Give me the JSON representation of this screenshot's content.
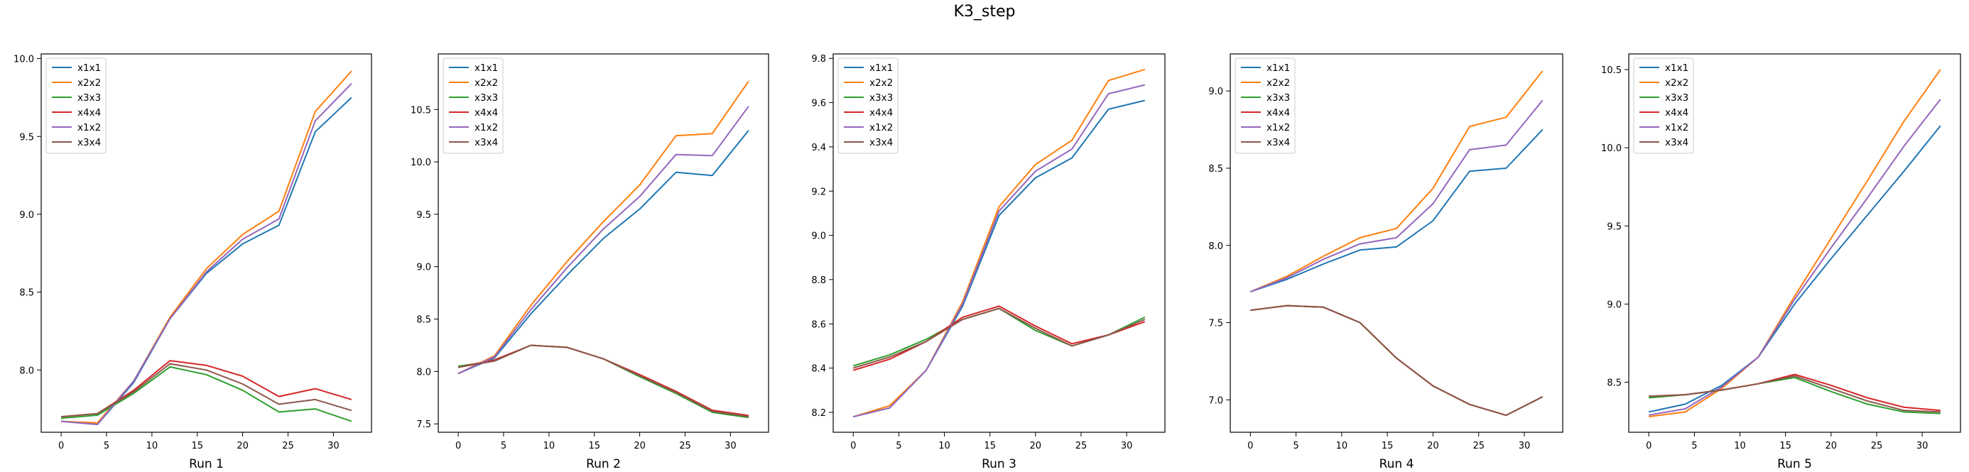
{
  "title": "K3_step",
  "colors": {
    "x1x1": "#1f77b4",
    "x2x2": "#ff7f0e",
    "x3x3": "#2ca02c",
    "x4x4": "#d62728",
    "x1x2": "#9467bd",
    "x3x4": "#8c564b"
  },
  "chart_data": [
    {
      "type": "line",
      "xlabel": "Run 1",
      "ylabel": "",
      "legend": "top-left",
      "grid": false,
      "x": [
        0,
        4,
        8,
        12,
        16,
        20,
        24,
        28,
        32
      ],
      "xticks": [
        0,
        5,
        10,
        15,
        20,
        25,
        30
      ],
      "yticks": [
        8.0,
        8.5,
        9.0,
        9.5,
        10.0
      ],
      "ytick_labels": [
        "8.0",
        "8.5",
        "9.0",
        "9.5",
        "10.0"
      ],
      "xlim": [
        -2.2,
        34.2
      ],
      "ylim": [
        7.6,
        10.03
      ],
      "series": [
        {
          "name": "x1x1",
          "values": [
            7.67,
            7.65,
            7.92,
            8.33,
            8.62,
            8.81,
            8.93,
            9.53,
            9.75
          ]
        },
        {
          "name": "x2x2",
          "values": [
            7.67,
            7.66,
            7.93,
            8.34,
            8.65,
            8.87,
            9.02,
            9.66,
            9.92
          ]
        },
        {
          "name": "x3x3",
          "values": [
            7.69,
            7.71,
            7.85,
            8.02,
            7.97,
            7.87,
            7.73,
            7.75,
            7.67
          ]
        },
        {
          "name": "x4x4",
          "values": [
            7.7,
            7.72,
            7.87,
            8.06,
            8.03,
            7.96,
            7.83,
            7.88,
            7.81
          ]
        },
        {
          "name": "x1x2",
          "values": [
            7.67,
            7.65,
            7.93,
            8.33,
            8.63,
            8.84,
            8.97,
            9.6,
            9.84
          ]
        },
        {
          "name": "x3x4",
          "values": [
            7.7,
            7.72,
            7.86,
            8.04,
            8.0,
            7.91,
            7.78,
            7.81,
            7.74
          ]
        }
      ]
    },
    {
      "type": "line",
      "xlabel": "Run 2",
      "ylabel": "",
      "legend": "top-left",
      "grid": false,
      "x": [
        0,
        4,
        8,
        12,
        16,
        20,
        24,
        28,
        32
      ],
      "xticks": [
        0,
        5,
        10,
        15,
        20,
        25,
        30
      ],
      "yticks": [
        7.5,
        8.0,
        8.5,
        9.0,
        9.5,
        10.0,
        10.5
      ],
      "ytick_labels": [
        "7.5",
        "8.0",
        "8.5",
        "9.0",
        "9.5",
        "10.0",
        "10.5"
      ],
      "xlim": [
        -2.2,
        34.2
      ],
      "ylim": [
        7.42,
        11.03
      ],
      "series": [
        {
          "name": "x1x1",
          "values": [
            7.98,
            8.13,
            8.55,
            8.92,
            9.27,
            9.55,
            9.9,
            9.87,
            10.3
          ]
        },
        {
          "name": "x2x2",
          "values": [
            7.98,
            8.15,
            8.63,
            9.05,
            9.43,
            9.78,
            10.25,
            10.27,
            10.77
          ]
        },
        {
          "name": "x3x3",
          "values": [
            8.05,
            8.1,
            8.25,
            8.23,
            8.12,
            7.95,
            7.79,
            7.61,
            7.56
          ]
        },
        {
          "name": "x4x4",
          "values": [
            8.04,
            8.11,
            8.25,
            8.23,
            8.12,
            7.97,
            7.81,
            7.63,
            7.58
          ]
        },
        {
          "name": "x1x2",
          "values": [
            7.98,
            8.14,
            8.59,
            8.99,
            9.36,
            9.67,
            10.07,
            10.06,
            10.53
          ]
        },
        {
          "name": "x3x4",
          "values": [
            8.04,
            8.1,
            8.25,
            8.23,
            8.12,
            7.96,
            7.8,
            7.62,
            7.57
          ]
        }
      ]
    },
    {
      "type": "line",
      "xlabel": "Run 3",
      "ylabel": "",
      "legend": "top-left",
      "grid": false,
      "x": [
        0,
        4,
        8,
        12,
        16,
        20,
        24,
        28,
        32
      ],
      "xticks": [
        0,
        5,
        10,
        15,
        20,
        25,
        30
      ],
      "yticks": [
        8.2,
        8.4,
        8.6,
        8.8,
        9.0,
        9.2,
        9.4,
        9.6,
        9.8
      ],
      "ytick_labels": [
        "8.2",
        "8.4",
        "8.6",
        "8.8",
        "9.0",
        "9.2",
        "9.4",
        "9.6",
        "9.8"
      ],
      "xlim": [
        -2.2,
        34.2
      ],
      "ylim": [
        8.11,
        9.82
      ],
      "series": [
        {
          "name": "x1x1",
          "values": [
            8.18,
            8.22,
            8.39,
            8.68,
            9.09,
            9.26,
            9.35,
            9.57,
            9.61
          ]
        },
        {
          "name": "x2x2",
          "values": [
            8.18,
            8.23,
            8.39,
            8.7,
            9.13,
            9.32,
            9.43,
            9.7,
            9.75
          ]
        },
        {
          "name": "x3x3",
          "values": [
            8.41,
            8.46,
            8.53,
            8.62,
            8.67,
            8.57,
            8.5,
            8.55,
            8.63
          ]
        },
        {
          "name": "x4x4",
          "values": [
            8.39,
            8.44,
            8.52,
            8.63,
            8.68,
            8.59,
            8.51,
            8.55,
            8.61
          ]
        },
        {
          "name": "x1x2",
          "values": [
            8.18,
            8.22,
            8.39,
            8.69,
            9.11,
            9.29,
            9.39,
            9.64,
            9.68
          ]
        },
        {
          "name": "x3x4",
          "values": [
            8.4,
            8.45,
            8.52,
            8.62,
            8.67,
            8.58,
            8.5,
            8.55,
            8.62
          ]
        }
      ]
    },
    {
      "type": "line",
      "xlabel": "Run 4",
      "ylabel": "",
      "legend": "top-left",
      "grid": false,
      "x": [
        0,
        4,
        8,
        12,
        16,
        20,
        24,
        28,
        32
      ],
      "xticks": [
        0,
        5,
        10,
        15,
        20,
        25,
        30
      ],
      "yticks": [
        7.0,
        7.5,
        8.0,
        8.5,
        9.0
      ],
      "ytick_labels": [
        "7.0",
        "7.5",
        "8.0",
        "8.5",
        "9.0"
      ],
      "xlim": [
        -2.2,
        34.2
      ],
      "ylim": [
        6.79,
        9.24
      ],
      "series": [
        {
          "name": "x1x1",
          "values": [
            7.7,
            7.78,
            7.88,
            7.97,
            7.99,
            8.16,
            8.48,
            8.5,
            8.75
          ]
        },
        {
          "name": "x2x2",
          "values": [
            7.7,
            7.8,
            7.93,
            8.05,
            8.11,
            8.37,
            8.77,
            8.83,
            9.13
          ]
        },
        {
          "name": "x3x3",
          "values": [
            7.58,
            7.61,
            7.6,
            7.5,
            7.27,
            7.09,
            6.97,
            6.9,
            7.02
          ]
        },
        {
          "name": "x4x4",
          "values": [
            7.58,
            7.61,
            7.6,
            7.5,
            7.27,
            7.09,
            6.97,
            6.9,
            7.02
          ]
        },
        {
          "name": "x1x2",
          "values": [
            7.7,
            7.79,
            7.91,
            8.01,
            8.05,
            8.27,
            8.62,
            8.65,
            8.94
          ]
        },
        {
          "name": "x3x4",
          "values": [
            7.58,
            7.61,
            7.6,
            7.5,
            7.27,
            7.09,
            6.97,
            6.9,
            7.02
          ]
        }
      ]
    },
    {
      "type": "line",
      "xlabel": "Run 5",
      "ylabel": "",
      "legend": "top-left",
      "grid": false,
      "x": [
        0,
        4,
        8,
        12,
        16,
        20,
        24,
        28,
        32
      ],
      "xticks": [
        0,
        5,
        10,
        15,
        20,
        25,
        30
      ],
      "yticks": [
        8.5,
        9.0,
        9.5,
        10.0,
        10.5
      ],
      "ytick_labels": [
        "8.5",
        "9.0",
        "9.5",
        "10.0",
        "10.5"
      ],
      "xlim": [
        -2.2,
        34.2
      ],
      "ylim": [
        8.18,
        10.6
      ],
      "series": [
        {
          "name": "x1x1",
          "values": [
            8.31,
            8.36,
            8.48,
            8.66,
            9.0,
            9.29,
            9.57,
            9.85,
            10.14
          ]
        },
        {
          "name": "x2x2",
          "values": [
            8.28,
            8.31,
            8.46,
            8.66,
            9.05,
            9.42,
            9.79,
            10.17,
            10.5
          ]
        },
        {
          "name": "x3x3",
          "values": [
            8.4,
            8.42,
            8.45,
            8.49,
            8.53,
            8.44,
            8.36,
            8.31,
            8.3
          ]
        },
        {
          "name": "x4x4",
          "values": [
            8.41,
            8.42,
            8.45,
            8.49,
            8.55,
            8.48,
            8.4,
            8.34,
            8.32
          ]
        },
        {
          "name": "x1x2",
          "values": [
            8.29,
            8.33,
            8.47,
            8.66,
            9.03,
            9.36,
            9.68,
            10.01,
            10.31
          ]
        },
        {
          "name": "x3x4",
          "values": [
            8.41,
            8.42,
            8.45,
            8.49,
            8.54,
            8.46,
            8.38,
            8.32,
            8.31
          ]
        }
      ]
    }
  ]
}
